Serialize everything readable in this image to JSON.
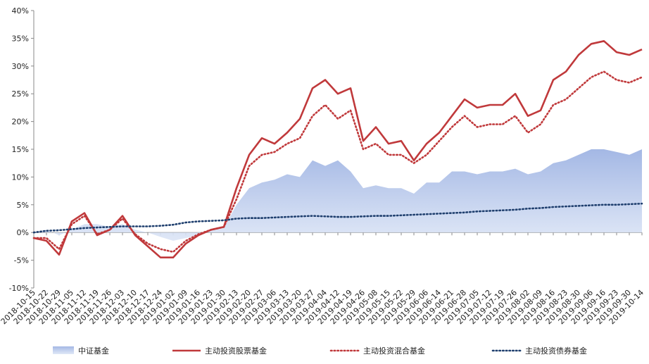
{
  "chart_data": {
    "type": "line",
    "x": [
      "2018-10-15",
      "2018-10-22",
      "2018-10-29",
      "2018-11-05",
      "2018-11-12",
      "2018-11-19",
      "2018-11-26",
      "2018-12-03",
      "2018-12-10",
      "2018-12-17",
      "2018-12-24",
      "2019-01-02",
      "2019-01-09",
      "2019-01-16",
      "2019-01-23",
      "2019-01-30",
      "2019-02-13",
      "2019-02-20",
      "2019-02-27",
      "2019-03-06",
      "2019-03-13",
      "2019-03-20",
      "2019-03-27",
      "2019-04-04",
      "2019-04-12",
      "2019-04-19",
      "2019-04-26",
      "2019-05-08",
      "2019-05-15",
      "2019-05-22",
      "2019-05-29",
      "2019-06-06",
      "2019-06-14",
      "2019-06-21",
      "2019-06-28",
      "2019-07-05",
      "2019-07-12",
      "2019-07-19",
      "2019-07-26",
      "2019-08-02",
      "2019-08-09",
      "2019-08-16",
      "2019-08-23",
      "2019-08-30",
      "2019-09-06",
      "2019-09-16",
      "2019-09-23",
      "2019-09-30",
      "2019-10-14"
    ],
    "ylim": [
      -10,
      40
    ],
    "yticks": [
      "-10%",
      "-5%",
      "0%",
      "5%",
      "10%",
      "15%",
      "20%",
      "25%",
      "30%",
      "35%",
      "40%"
    ],
    "legend_position": "bottom",
    "series": [
      {
        "name": "中证基金",
        "style": "area",
        "color": "#A9BCE6",
        "values": [
          0,
          0.5,
          -0.5,
          0.5,
          1.5,
          1.5,
          1,
          1.5,
          0.5,
          0,
          -0.8,
          -1.5,
          -1,
          -0.5,
          0.3,
          0.8,
          5,
          8,
          9,
          9.5,
          10.5,
          10,
          13,
          12,
          13,
          11,
          8,
          8.5,
          8,
          8,
          7,
          9,
          9,
          11,
          11,
          10.5,
          11,
          11,
          11.5,
          10.5,
          11,
          12.5,
          13,
          14,
          15,
          15,
          14.5,
          14,
          15
        ]
      },
      {
        "name": "主动投资股票基金",
        "style": "solid",
        "color": "#C0393B",
        "values": [
          -1,
          -1.5,
          -4,
          2,
          3.5,
          -0.5,
          0.5,
          3,
          -0.5,
          -2.5,
          -4.5,
          -4.5,
          -2,
          -0.5,
          0.5,
          1,
          8,
          14,
          17,
          16,
          18,
          20.5,
          26,
          27.5,
          25,
          26,
          16.5,
          19,
          16,
          16.5,
          13,
          16,
          18,
          21,
          24,
          22.5,
          23,
          23,
          25,
          21,
          22,
          27.5,
          29,
          32,
          34,
          34.5,
          32.5,
          32,
          33
        ]
      },
      {
        "name": "主动投资混合基金",
        "style": "dotted",
        "color": "#C0393B",
        "values": [
          -1,
          -1,
          -3,
          1.5,
          3,
          -0.3,
          0.5,
          2.5,
          -0.3,
          -2,
          -3,
          -3.5,
          -1.5,
          -0.3,
          0.5,
          1,
          6,
          12,
          14,
          14.5,
          16,
          17,
          21,
          23,
          20.5,
          22,
          15,
          16,
          14,
          14,
          12.5,
          14,
          16.5,
          19,
          21,
          19,
          19.5,
          19.5,
          21,
          18,
          19.5,
          23,
          24,
          26,
          28,
          29,
          27.5,
          27,
          28
        ]
      },
      {
        "name": "主动投资债券基金",
        "style": "dotted",
        "color": "#1F3F6E",
        "values": [
          0,
          0.3,
          0.4,
          0.6,
          0.8,
          0.9,
          1,
          1.1,
          1.1,
          1.1,
          1.2,
          1.4,
          1.8,
          2,
          2.1,
          2.2,
          2.5,
          2.6,
          2.6,
          2.7,
          2.8,
          2.9,
          3,
          2.9,
          2.8,
          2.8,
          2.9,
          3,
          3,
          3.1,
          3.2,
          3.3,
          3.4,
          3.5,
          3.6,
          3.8,
          3.9,
          4,
          4.1,
          4.3,
          4.4,
          4.6,
          4.7,
          4.8,
          4.9,
          5,
          5,
          5.1,
          5.2
        ]
      }
    ]
  },
  "legend": [
    {
      "label": "中证基金",
      "color": "#A9BCE6",
      "style": "area"
    },
    {
      "label": "主动投资股票基金",
      "color": "#C0393B",
      "style": "solid"
    },
    {
      "label": "主动投资混合基金",
      "color": "#C0393B",
      "style": "dotted"
    },
    {
      "label": "主动投资债券基金",
      "color": "#1F3F6E",
      "style": "dotted"
    }
  ]
}
